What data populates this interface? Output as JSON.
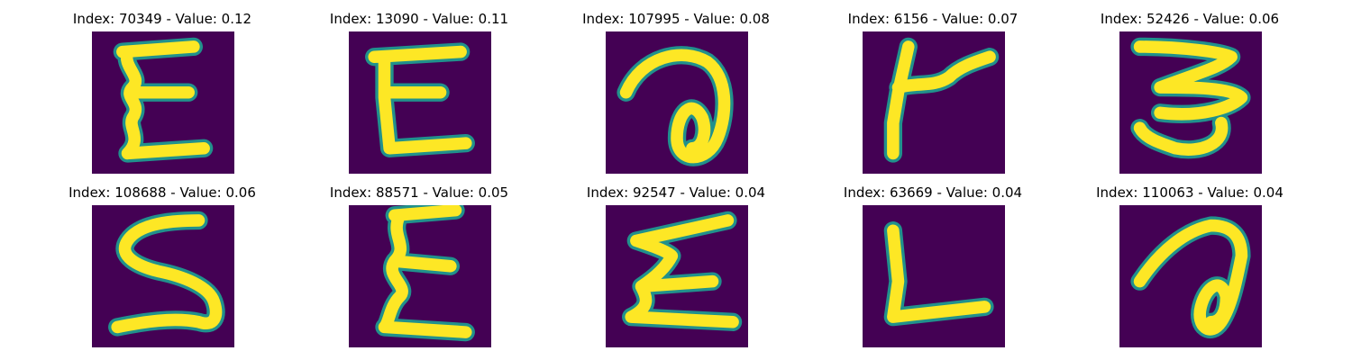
{
  "colors": {
    "background": "#440154",
    "stroke_outer": "#21918c",
    "stroke_inner": "#fde725"
  },
  "panels": [
    {
      "title": "Index: 70349 - Value: 0.12",
      "glyph": "epsilon-upright"
    },
    {
      "title": "Index: 13090 - Value: 0.11",
      "glyph": "E-curly"
    },
    {
      "title": "Index: 107995 - Value: 0.08",
      "glyph": "a-handwritten"
    },
    {
      "title": "Index: 6156 - Value: 0.07",
      "glyph": "t-cross"
    },
    {
      "title": "Index: 52426 - Value: 0.06",
      "glyph": "three-mirrored"
    },
    {
      "title": "Index: 108688 - Value: 0.06",
      "glyph": "S-mirrored"
    },
    {
      "title": "Index: 88571 - Value: 0.05",
      "glyph": "sigma-narrow"
    },
    {
      "title": "Index: 92547 - Value: 0.04",
      "glyph": "sigma-wide"
    },
    {
      "title": "Index: 63669 - Value: 0.04",
      "glyph": "L-letter"
    },
    {
      "title": "Index: 110063 - Value: 0.04",
      "glyph": "a-slanted"
    }
  ]
}
